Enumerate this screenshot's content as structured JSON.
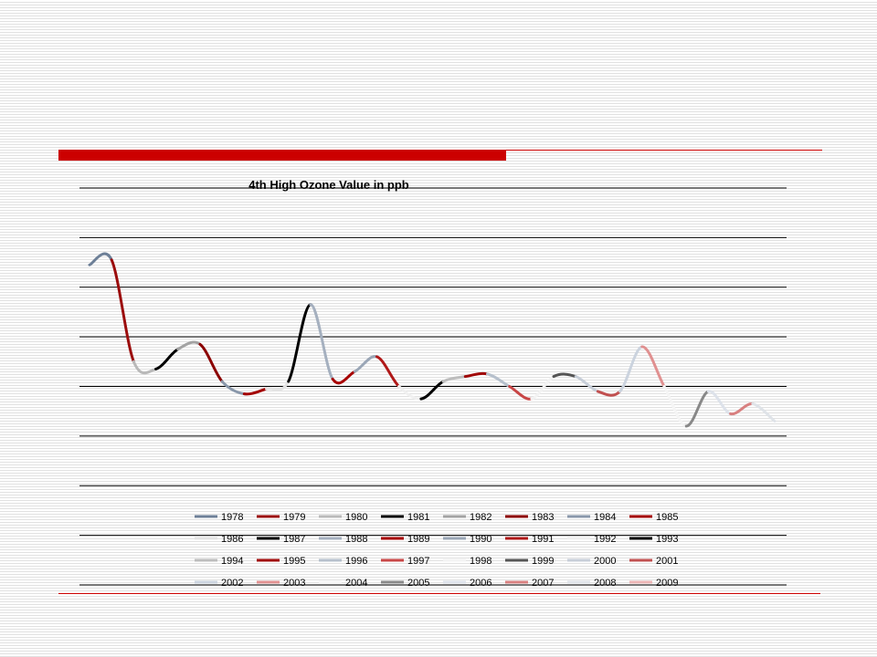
{
  "chart_data": {
    "type": "line",
    "title": "4th High Ozone Value in ppb",
    "xlabel": "",
    "ylabel": "",
    "ylim": [
      0,
      80
    ],
    "grid": true,
    "legend_position": "bottom",
    "categories": [
      "1978",
      "1979",
      "1980",
      "1981",
      "1982",
      "1983",
      "1984",
      "1985",
      "1986",
      "1987",
      "1988",
      "1989",
      "1990",
      "1991",
      "1992",
      "1993",
      "1994",
      "1995",
      "1996",
      "1997",
      "1998",
      "1999",
      "2000",
      "2001",
      "2002",
      "2003",
      "2004",
      "2005",
      "2006",
      "2007",
      "2008",
      "2009"
    ],
    "values": [
      64.5,
      65.5,
      45,
      43.5,
      47.5,
      48.5,
      41,
      38.5,
      39.5,
      41,
      56.5,
      41.5,
      43,
      46,
      40,
      37.5,
      41,
      42,
      42.5,
      40,
      37.5,
      42,
      42,
      39,
      39,
      48,
      40,
      32,
      39,
      34.5,
      36.5,
      33
    ],
    "series": [
      {
        "name": "1978",
        "color": "#6d7f97"
      },
      {
        "name": "1979",
        "color": "#9b0d0d"
      },
      {
        "name": "1980",
        "color": "#b9b9b9"
      },
      {
        "name": "1981",
        "color": "#000000"
      },
      {
        "name": "1982",
        "color": "#a3a3a3"
      },
      {
        "name": "1983",
        "color": "#8b0000"
      },
      {
        "name": "1984",
        "color": "#8997aa"
      },
      {
        "name": "1985",
        "color": "#a30000"
      },
      {
        "name": "1986",
        "color": "#e4e4e4"
      },
      {
        "name": "1987",
        "color": "#000000"
      },
      {
        "name": "1988",
        "color": "#a5b0bf"
      },
      {
        "name": "1989",
        "color": "#a70000"
      },
      {
        "name": "1990",
        "color": "#9aa6b6"
      },
      {
        "name": "1991",
        "color": "#b01818"
      },
      {
        "name": "1992",
        "color": "#f0f0f0"
      },
      {
        "name": "1993",
        "color": "#000000"
      },
      {
        "name": "1994",
        "color": "#bdbdbd"
      },
      {
        "name": "1995",
        "color": "#a00808"
      },
      {
        "name": "1996",
        "color": "#b6c0cc"
      },
      {
        "name": "1997",
        "color": "#c84646"
      },
      {
        "name": "1998",
        "color": "#f3f3f3"
      },
      {
        "name": "1999",
        "color": "#555555"
      },
      {
        "name": "2000",
        "color": "#c7ced8"
      },
      {
        "name": "2001",
        "color": "#c15050"
      },
      {
        "name": "2002",
        "color": "#cbd3de"
      },
      {
        "name": "2003",
        "color": "#e09090"
      },
      {
        "name": "2004",
        "color": "#f5f5f5"
      },
      {
        "name": "2005",
        "color": "#888888"
      },
      {
        "name": "2006",
        "color": "#dde2ea"
      },
      {
        "name": "2007",
        "color": "#d88080"
      },
      {
        "name": "2008",
        "color": "#dfe3e8"
      },
      {
        "name": "2009",
        "color": "#ebb4b4"
      }
    ]
  }
}
